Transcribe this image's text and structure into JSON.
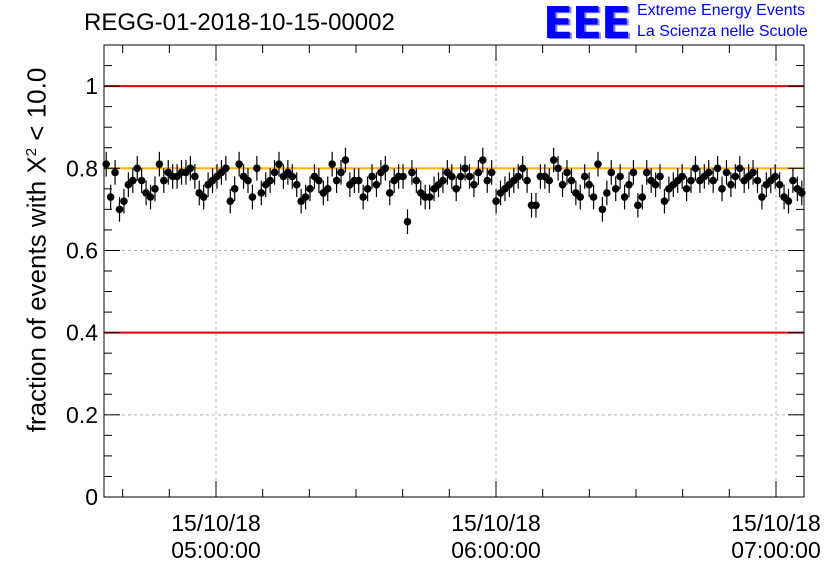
{
  "header": {
    "title": "REGG-01-2018-10-15-00002",
    "logo_mark": "EEE",
    "logo_line1": "Extreme Energy Events",
    "logo_line2": "La Scienza nelle Scuole"
  },
  "colors": {
    "markers": "#000000",
    "threshold_lines": "#dd0000",
    "mean_line": "#ffb000",
    "grid": "#b0b0b0",
    "logo": "#0000ff"
  },
  "chart_data": {
    "type": "scatter",
    "title": "REGG-01-2018-10-15-00002",
    "ylabel_prefix": "fraction of events with ",
    "ylabel_chi": "X",
    "ylabel_exp": "2",
    "ylabel_suffix": " < 10.0",
    "xaxis_start": "04:36",
    "xaxis_end": "07:06",
    "xlim_minutes": [
      0,
      150
    ],
    "ylim": [
      0,
      1.1
    ],
    "y_ticks": [
      0,
      0.2,
      0.4,
      0.6,
      0.8,
      1
    ],
    "y_tick_labels": [
      "0",
      "0.2",
      "0.4",
      "0.6",
      "0.8",
      "1"
    ],
    "x_ticks": [
      {
        "date": "15/10/18",
        "time": "05:00:00"
      },
      {
        "date": "15/10/18",
        "time": "06:00:00"
      },
      {
        "date": "15/10/18",
        "time": "07:00:00"
      }
    ],
    "grid": true,
    "threshold_lines": [
      1.0,
      0.4
    ],
    "mean_line": 0.8,
    "error": 0.03,
    "y": [
      0.81,
      0.73,
      0.79,
      0.7,
      0.72,
      0.76,
      0.77,
      0.8,
      0.77,
      0.74,
      0.73,
      0.75,
      0.81,
      0.77,
      0.79,
      0.78,
      0.78,
      0.79,
      0.79,
      0.8,
      0.78,
      0.74,
      0.73,
      0.76,
      0.77,
      0.78,
      0.79,
      0.8,
      0.72,
      0.75,
      0.81,
      0.78,
      0.77,
      0.73,
      0.8,
      0.74,
      0.76,
      0.77,
      0.79,
      0.81,
      0.78,
      0.79,
      0.78,
      0.76,
      0.72,
      0.73,
      0.75,
      0.78,
      0.77,
      0.74,
      0.75,
      0.81,
      0.77,
      0.79,
      0.82,
      0.76,
      0.77,
      0.77,
      0.73,
      0.75,
      0.78,
      0.76,
      0.79,
      0.8,
      0.74,
      0.77,
      0.78,
      0.78,
      0.67,
      0.79,
      0.77,
      0.74,
      0.73,
      0.73,
      0.75,
      0.76,
      0.77,
      0.79,
      0.78,
      0.75,
      0.78,
      0.8,
      0.78,
      0.76,
      0.79,
      0.82,
      0.77,
      0.79,
      0.72,
      0.74,
      0.75,
      0.76,
      0.77,
      0.78,
      0.8,
      0.77,
      0.71,
      0.71,
      0.78,
      0.78,
      0.77,
      0.82,
      0.8,
      0.76,
      0.79,
      0.77,
      0.74,
      0.73,
      0.78,
      0.76,
      0.73,
      0.81,
      0.7,
      0.74,
      0.79,
      0.75,
      0.78,
      0.73,
      0.76,
      0.79,
      0.71,
      0.73,
      0.79,
      0.77,
      0.76,
      0.78,
      0.72,
      0.75,
      0.76,
      0.77,
      0.78,
      0.75,
      0.77,
      0.8,
      0.77,
      0.78,
      0.79,
      0.77,
      0.8,
      0.75,
      0.79,
      0.76,
      0.78,
      0.8,
      0.77,
      0.78,
      0.79,
      0.77,
      0.73,
      0.76,
      0.77,
      0.78,
      0.76,
      0.73,
      0.72,
      0.77,
      0.75,
      0.74
    ]
  }
}
